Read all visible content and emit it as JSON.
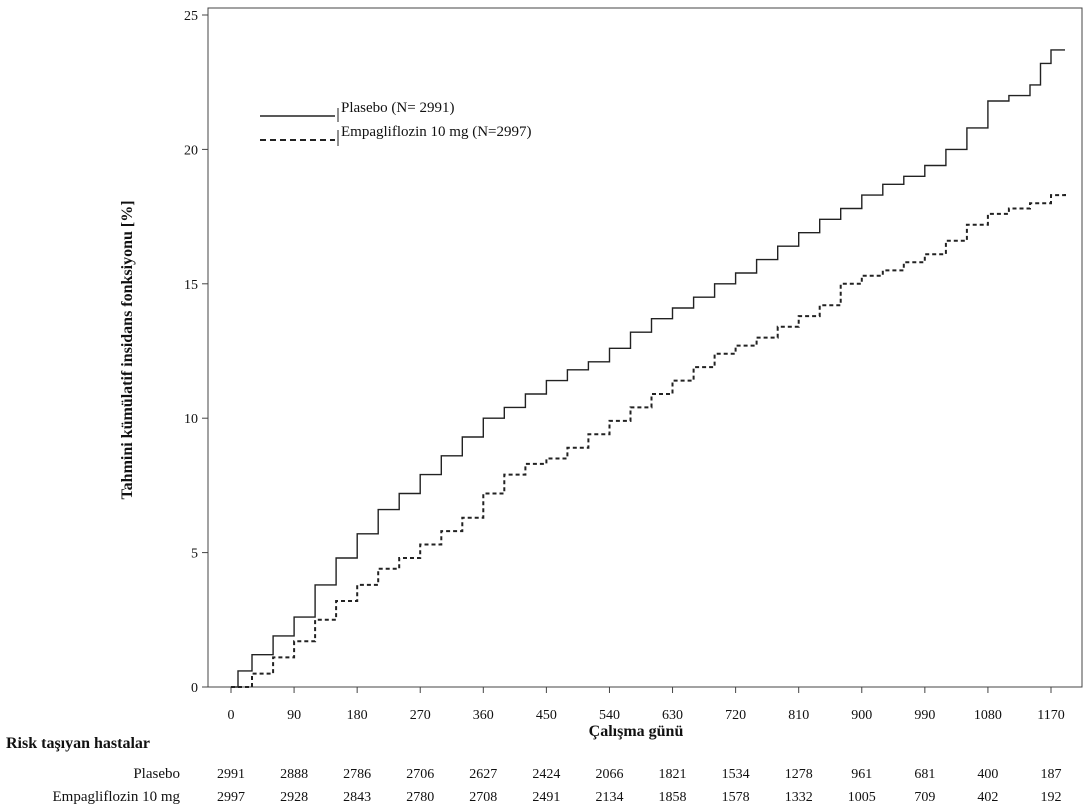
{
  "chart_data": {
    "type": "line",
    "xlabel": "Çalışma günü",
    "ylabel": "Tahmini kümülatif insidans fonksiyonu [%]",
    "xlim": [
      0,
      1200
    ],
    "ylim": [
      0,
      25
    ],
    "x_ticks": [
      0,
      90,
      180,
      270,
      360,
      450,
      540,
      630,
      720,
      810,
      900,
      990,
      1080,
      1170
    ],
    "y_ticks": [
      0,
      5,
      10,
      15,
      20,
      25
    ],
    "grid": false,
    "legend_position": "top-left",
    "series": [
      {
        "name": "Plasebo (N= 2991)",
        "line_style": "solid",
        "color": "#222222",
        "points": [
          [
            0,
            0
          ],
          [
            10,
            0.6
          ],
          [
            30,
            1.2
          ],
          [
            60,
            1.9
          ],
          [
            90,
            2.6
          ],
          [
            120,
            3.8
          ],
          [
            150,
            4.8
          ],
          [
            180,
            5.7
          ],
          [
            210,
            6.6
          ],
          [
            240,
            7.2
          ],
          [
            270,
            7.9
          ],
          [
            300,
            8.6
          ],
          [
            330,
            9.3
          ],
          [
            360,
            10.0
          ],
          [
            390,
            10.4
          ],
          [
            420,
            10.9
          ],
          [
            450,
            11.4
          ],
          [
            480,
            11.8
          ],
          [
            510,
            12.1
          ],
          [
            540,
            12.6
          ],
          [
            570,
            13.2
          ],
          [
            600,
            13.7
          ],
          [
            630,
            14.1
          ],
          [
            660,
            14.5
          ],
          [
            690,
            15.0
          ],
          [
            720,
            15.4
          ],
          [
            750,
            15.9
          ],
          [
            780,
            16.4
          ],
          [
            810,
            16.9
          ],
          [
            840,
            17.4
          ],
          [
            870,
            17.8
          ],
          [
            900,
            18.3
          ],
          [
            930,
            18.7
          ],
          [
            960,
            19.0
          ],
          [
            990,
            19.4
          ],
          [
            1020,
            20.0
          ],
          [
            1050,
            20.8
          ],
          [
            1080,
            21.8
          ],
          [
            1110,
            22.0
          ],
          [
            1140,
            22.4
          ],
          [
            1155,
            23.2
          ],
          [
            1170,
            23.7
          ],
          [
            1190,
            23.7
          ]
        ]
      },
      {
        "name": "Empagliflozin 10 mg (N=2997)",
        "line_style": "dashed",
        "color": "#222222",
        "points": [
          [
            0,
            0
          ],
          [
            30,
            0.5
          ],
          [
            60,
            1.1
          ],
          [
            90,
            1.7
          ],
          [
            120,
            2.5
          ],
          [
            150,
            3.2
          ],
          [
            180,
            3.8
          ],
          [
            210,
            4.4
          ],
          [
            240,
            4.8
          ],
          [
            270,
            5.3
          ],
          [
            300,
            5.8
          ],
          [
            330,
            6.3
          ],
          [
            360,
            7.2
          ],
          [
            390,
            7.9
          ],
          [
            420,
            8.3
          ],
          [
            450,
            8.5
          ],
          [
            480,
            8.9
          ],
          [
            510,
            9.4
          ],
          [
            540,
            9.9
          ],
          [
            570,
            10.4
          ],
          [
            600,
            10.9
          ],
          [
            630,
            11.4
          ],
          [
            660,
            11.9
          ],
          [
            690,
            12.4
          ],
          [
            720,
            12.7
          ],
          [
            750,
            13.0
          ],
          [
            780,
            13.4
          ],
          [
            810,
            13.8
          ],
          [
            840,
            14.2
          ],
          [
            870,
            15.0
          ],
          [
            900,
            15.3
          ],
          [
            930,
            15.5
          ],
          [
            960,
            15.8
          ],
          [
            990,
            16.1
          ],
          [
            1020,
            16.6
          ],
          [
            1050,
            17.2
          ],
          [
            1080,
            17.6
          ],
          [
            1110,
            17.8
          ],
          [
            1140,
            18.0
          ],
          [
            1170,
            18.3
          ],
          [
            1190,
            18.4
          ]
        ]
      }
    ]
  },
  "risk_table": {
    "title": "Risk taşıyan hastalar",
    "rows": [
      {
        "label": "Plasebo",
        "values": [
          "2991",
          "2888",
          "2786",
          "2706",
          "2627",
          "2424",
          "2066",
          "1821",
          "1534",
          "1278",
          "961",
          "681",
          "400",
          "187"
        ]
      },
      {
        "label": "Empagliflozin 10 mg",
        "values": [
          "2997",
          "2928",
          "2843",
          "2780",
          "2708",
          "2491",
          "2134",
          "1858",
          "1578",
          "1332",
          "1005",
          "709",
          "402",
          "192"
        ]
      }
    ]
  }
}
